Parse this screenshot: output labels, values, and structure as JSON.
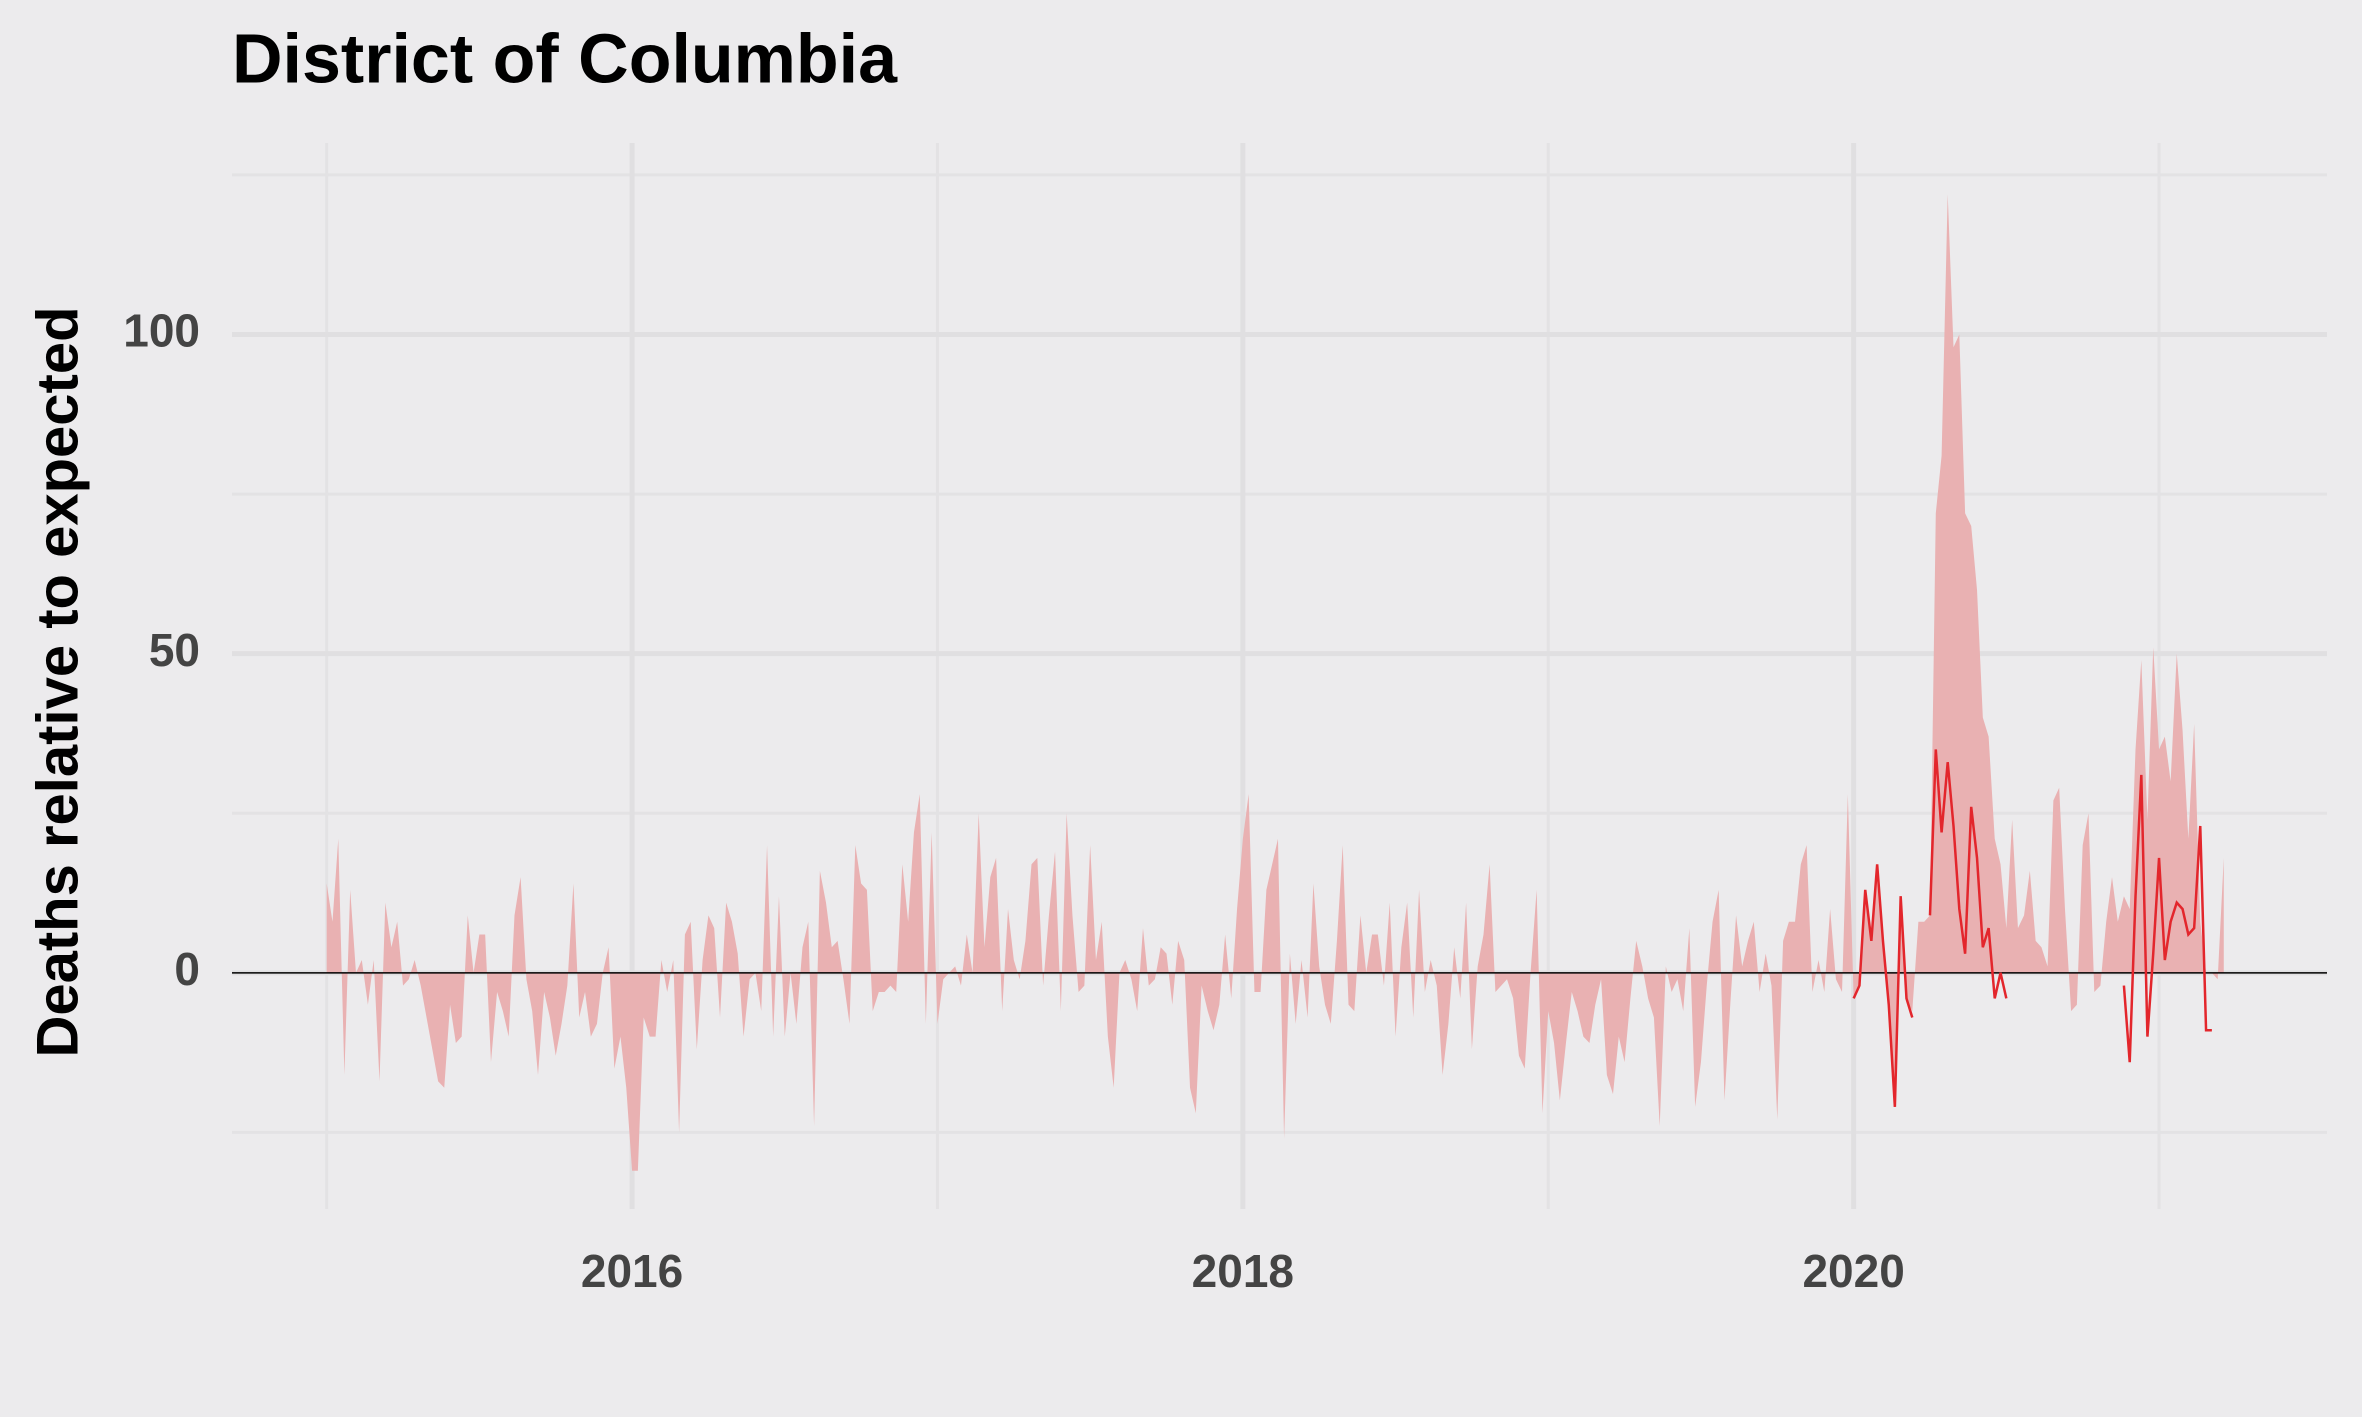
{
  "chart_data": {
    "type": "area",
    "title": "District of Columbia",
    "y_label": "Deaths relative to expected",
    "xlim": [
      2014.69,
      2021.55
    ],
    "ylim": [
      -37,
      130
    ],
    "xticks": [
      2016,
      2018,
      2020
    ],
    "yticks": [
      0,
      50,
      100
    ],
    "minor_xticks": [
      2015,
      2017,
      2019,
      2021
    ],
    "minor_yticks": [
      -25,
      25,
      75,
      125
    ],
    "grid": true,
    "baseline": 0,
    "series": [
      {
        "type": "area",
        "color": "#e9b1b2",
        "x": [
          2015.0,
          2015.019,
          2015.038,
          2015.058,
          2015.077,
          2015.096,
          2015.115,
          2015.135,
          2015.154,
          2015.173,
          2015.192,
          2015.212,
          2015.231,
          2015.25,
          2015.269,
          2015.288,
          2015.308,
          2015.327,
          2015.346,
          2015.365,
          2015.385,
          2015.404,
          2015.423,
          2015.442,
          2015.462,
          2015.481,
          2015.5,
          2015.519,
          2015.538,
          2015.558,
          2015.577,
          2015.596,
          2015.615,
          2015.635,
          2015.654,
          2015.673,
          2015.692,
          2015.712,
          2015.731,
          2015.75,
          2015.769,
          2015.788,
          2015.808,
          2015.827,
          2015.846,
          2015.865,
          2015.885,
          2015.904,
          2015.923,
          2015.942,
          2015.962,
          2015.981,
          2016.0,
          2016.019,
          2016.038,
          2016.058,
          2016.077,
          2016.096,
          2016.115,
          2016.135,
          2016.154,
          2016.173,
          2016.192,
          2016.212,
          2016.231,
          2016.25,
          2016.269,
          2016.288,
          2016.308,
          2016.327,
          2016.346,
          2016.365,
          2016.385,
          2016.404,
          2016.423,
          2016.442,
          2016.462,
          2016.481,
          2016.5,
          2016.519,
          2016.538,
          2016.558,
          2016.577,
          2016.596,
          2016.615,
          2016.635,
          2016.654,
          2016.673,
          2016.692,
          2016.712,
          2016.731,
          2016.75,
          2016.769,
          2016.788,
          2016.808,
          2016.827,
          2016.846,
          2016.865,
          2016.885,
          2016.904,
          2016.923,
          2016.942,
          2016.962,
          2016.981,
          2017.0,
          2017.019,
          2017.038,
          2017.058,
          2017.077,
          2017.096,
          2017.115,
          2017.135,
          2017.154,
          2017.173,
          2017.192,
          2017.212,
          2017.231,
          2017.25,
          2017.269,
          2017.288,
          2017.308,
          2017.327,
          2017.346,
          2017.365,
          2017.385,
          2017.404,
          2017.423,
          2017.442,
          2017.462,
          2017.481,
          2017.5,
          2017.519,
          2017.538,
          2017.558,
          2017.577,
          2017.596,
          2017.615,
          2017.635,
          2017.654,
          2017.673,
          2017.692,
          2017.712,
          2017.731,
          2017.75,
          2017.769,
          2017.788,
          2017.808,
          2017.827,
          2017.846,
          2017.865,
          2017.885,
          2017.904,
          2017.923,
          2017.942,
          2017.962,
          2017.981,
          2018.0,
          2018.019,
          2018.038,
          2018.058,
          2018.077,
          2018.096,
          2018.115,
          2018.135,
          2018.154,
          2018.173,
          2018.192,
          2018.212,
          2018.231,
          2018.25,
          2018.269,
          2018.288,
          2018.308,
          2018.327,
          2018.346,
          2018.365,
          2018.385,
          2018.404,
          2018.423,
          2018.442,
          2018.462,
          2018.481,
          2018.5,
          2018.519,
          2018.538,
          2018.558,
          2018.577,
          2018.596,
          2018.615,
          2018.635,
          2018.654,
          2018.673,
          2018.692,
          2018.712,
          2018.731,
          2018.75,
          2018.769,
          2018.788,
          2018.808,
          2018.827,
          2018.846,
          2018.865,
          2018.885,
          2018.904,
          2018.923,
          2018.942,
          2018.962,
          2018.981,
          2019.0,
          2019.019,
          2019.038,
          2019.058,
          2019.077,
          2019.096,
          2019.115,
          2019.135,
          2019.154,
          2019.173,
          2019.192,
          2019.212,
          2019.231,
          2019.25,
          2019.269,
          2019.288,
          2019.308,
          2019.327,
          2019.346,
          2019.365,
          2019.385,
          2019.404,
          2019.423,
          2019.442,
          2019.462,
          2019.481,
          2019.5,
          2019.519,
          2019.538,
          2019.558,
          2019.577,
          2019.596,
          2019.615,
          2019.635,
          2019.654,
          2019.673,
          2019.692,
          2019.712,
          2019.731,
          2019.75,
          2019.769,
          2019.788,
          2019.808,
          2019.827,
          2019.846,
          2019.865,
          2019.885,
          2019.904,
          2019.923,
          2019.942,
          2019.962,
          2019.981,
          2020.0,
          2020.019,
          2020.038,
          2020.058,
          2020.077,
          2020.096,
          2020.115,
          2020.135,
          2020.154,
          2020.173,
          2020.192,
          2020.212,
          2020.231,
          2020.25,
          2020.269,
          2020.288,
          2020.308,
          2020.327,
          2020.346,
          2020.365,
          2020.385,
          2020.404,
          2020.423,
          2020.442,
          2020.462,
          2020.481,
          2020.5,
          2020.519,
          2020.538,
          2020.558,
          2020.577,
          2020.596,
          2020.615,
          2020.635,
          2020.654,
          2020.673,
          2020.692,
          2020.712,
          2020.731,
          2020.75,
          2020.769,
          2020.788,
          2020.808,
          2020.827,
          2020.846,
          2020.865,
          2020.885,
          2020.904,
          2020.923,
          2020.942,
          2020.962,
          2020.981,
          2021.0,
          2021.019,
          2021.038,
          2021.058,
          2021.077,
          2021.096,
          2021.115,
          2021.135,
          2021.154,
          2021.173,
          2021.192,
          2021.212
        ],
        "values": [
          14,
          8,
          21,
          -16,
          13,
          0,
          2,
          -5,
          2,
          -17,
          11,
          4,
          8,
          -2,
          -1,
          2,
          -2,
          -7,
          -12,
          -17,
          -18,
          -5,
          -11,
          -10,
          9,
          0,
          6,
          6,
          -14,
          -3,
          -6,
          -10,
          9,
          15,
          -1,
          -6,
          -16,
          -3,
          -7,
          -13,
          -8,
          -2,
          14,
          -7,
          -3,
          -10,
          -8,
          0,
          4,
          -15,
          -10,
          -18,
          -31,
          -31,
          -7,
          -10,
          -10,
          2,
          -3,
          2,
          -25,
          6,
          8,
          -12,
          2,
          9,
          7,
          -7,
          11,
          8,
          3,
          -10,
          -1,
          0,
          -6,
          20,
          -10,
          12,
          -10,
          0,
          -8,
          4,
          8,
          -24,
          16,
          11,
          4,
          5,
          -1,
          -8,
          20,
          14,
          13,
          -6,
          -3,
          -3,
          -2,
          -3,
          17,
          8,
          22,
          28,
          -8,
          22,
          -8,
          -1,
          0,
          1,
          -2,
          6,
          0,
          25,
          4,
          15,
          18,
          -6,
          10,
          2,
          -1,
          5,
          17,
          18,
          -2,
          9,
          19,
          -6,
          25,
          9,
          -3,
          -2,
          20,
          2,
          8,
          -10,
          -18,
          0,
          2,
          -1,
          -6,
          7,
          -2,
          -1,
          4,
          3,
          -5,
          5,
          2,
          -18,
          -22,
          -2,
          -6,
          -9,
          -5,
          6,
          -4,
          10,
          21,
          28,
          -3,
          -3,
          13,
          17,
          21,
          -26,
          3,
          -8,
          2,
          -7,
          14,
          1,
          -5,
          -8,
          5,
          20,
          -5,
          -6,
          9,
          0,
          6,
          6,
          -2,
          11,
          -10,
          4,
          11,
          -7,
          13,
          -3,
          2,
          -2,
          -16,
          -8,
          4,
          -4,
          11,
          -12,
          1,
          6,
          17,
          -3,
          -2,
          -1,
          -4,
          -13,
          -15,
          0,
          13,
          -22,
          -6,
          -11,
          -20,
          -11,
          -3,
          -6,
          -10,
          -11,
          -5,
          -1,
          -16,
          -19,
          -10,
          -14,
          -4,
          5,
          1,
          -4,
          -7,
          -24,
          1,
          -3,
          -1,
          -6,
          7,
          -21,
          -14,
          -2,
          8,
          13,
          -20,
          -5,
          9,
          1,
          5,
          8,
          -3,
          3,
          -2,
          -23,
          5,
          8,
          8,
          17,
          20,
          -3,
          2,
          -3,
          10,
          -1,
          -3,
          28,
          -4,
          -2,
          13,
          5,
          17,
          4,
          -5,
          -20,
          12,
          -4,
          -6,
          8,
          8,
          9,
          72,
          81,
          122,
          98,
          100,
          72,
          70,
          60,
          40,
          37,
          21,
          17,
          7,
          24,
          7,
          9,
          16,
          5,
          4,
          1,
          27,
          29,
          10,
          -6,
          -5,
          20,
          25,
          -3,
          -2,
          8,
          15,
          8,
          12,
          10,
          35,
          49,
          24,
          51,
          35,
          37,
          30,
          50,
          38,
          21,
          39,
          8,
          0,
          0,
          -1,
          18
        ]
      },
      {
        "type": "line",
        "color": "#e3262c",
        "x": [
          2020.0,
          2020.019,
          2020.038,
          2020.058,
          2020.077,
          2020.096,
          2020.115,
          2020.135,
          2020.154,
          2020.173,
          2020.192,
          2020.212,
          2020.231,
          2020.25,
          2020.269,
          2020.288,
          2020.308,
          2020.327,
          2020.346,
          2020.365,
          2020.385,
          2020.404,
          2020.423,
          2020.442,
          2020.462,
          2020.481,
          2020.5,
          2020.519,
          2020.538,
          2020.558,
          2020.577,
          2020.596,
          2020.615,
          2020.635,
          2020.654,
          2020.673,
          2020.692,
          2020.712,
          2020.731,
          2020.75,
          2020.769,
          2020.788,
          2020.808,
          2020.827,
          2020.846,
          2020.865,
          2020.885,
          2020.904,
          2020.923,
          2020.942,
          2020.962,
          2020.981,
          2021.0,
          2021.019,
          2021.038,
          2021.058,
          2021.077,
          2021.096,
          2021.115,
          2021.135,
          2021.154,
          2021.173
        ],
        "values": [
          -4,
          -2,
          13,
          5,
          17,
          5,
          -5,
          -21,
          12,
          -4,
          -7,
          null,
          null,
          9,
          35,
          22,
          33,
          23,
          10,
          3,
          26,
          18,
          4,
          7,
          -4,
          0,
          -4,
          null,
          null,
          null,
          null,
          null,
          null,
          null,
          null,
          null,
          null,
          null,
          null,
          null,
          null,
          null,
          null,
          null,
          null,
          null,
          -2,
          -14,
          12,
          31,
          -10,
          3,
          18,
          2,
          8,
          11,
          10,
          6,
          7,
          23,
          -9,
          -9
        ]
      }
    ]
  }
}
